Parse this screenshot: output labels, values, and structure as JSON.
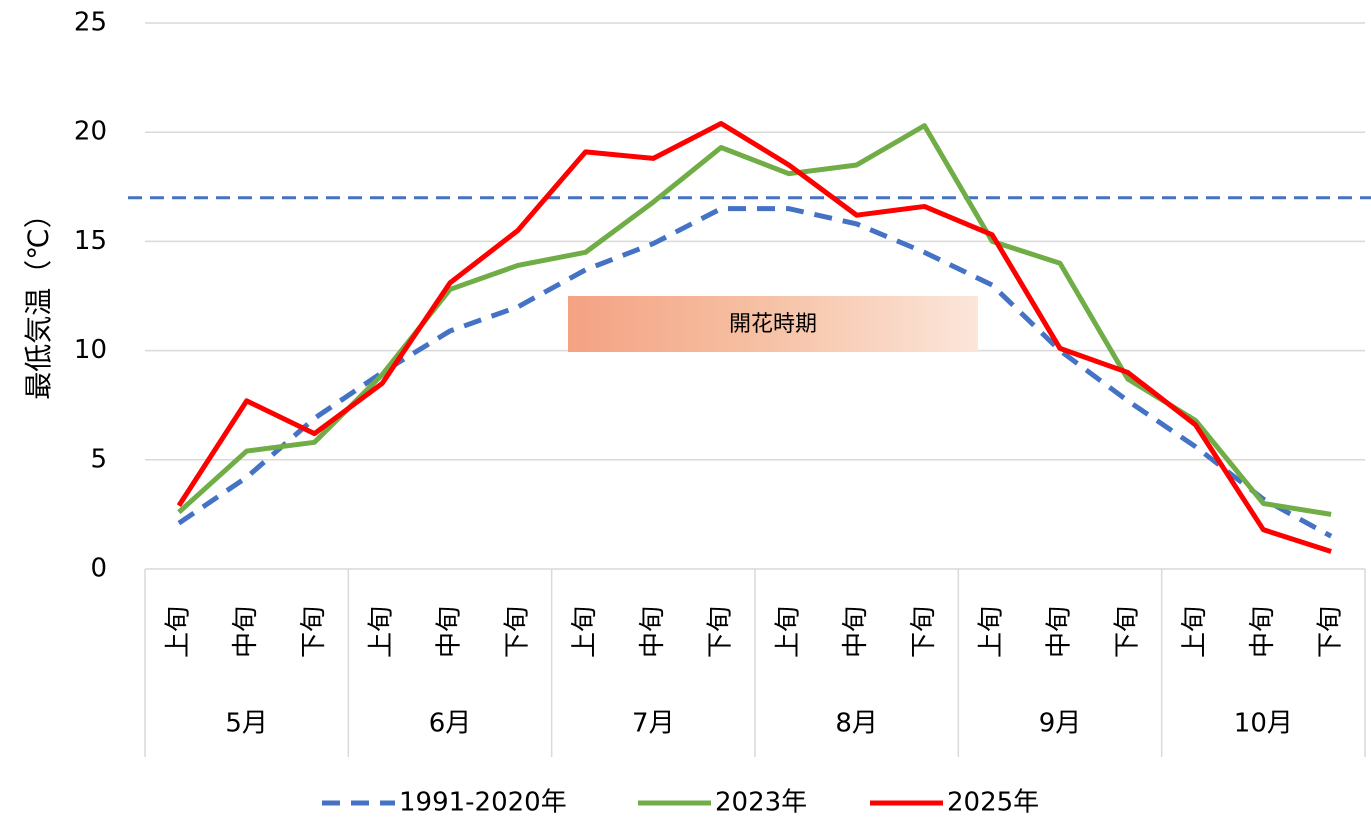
{
  "chart_data": {
    "type": "line",
    "y_label": "最低気温（℃）",
    "annotation": "開花時期",
    "categories": [
      "上旬",
      "中旬",
      "下旬",
      "上旬",
      "中旬",
      "下旬",
      "上旬",
      "中旬",
      "下旬",
      "上旬",
      "中旬",
      "下旬",
      "上旬",
      "中旬",
      "下旬",
      "上旬",
      "中旬",
      "下旬"
    ],
    "groups": [
      "5月",
      "6月",
      "7月",
      "8月",
      "9月",
      "10月"
    ],
    "series": [
      {
        "name": "1991-2020年",
        "color": "#4472c4",
        "dashed": true,
        "values": [
          2.1,
          4.2,
          6.9,
          9.0,
          10.9,
          12.0,
          13.7,
          14.9,
          16.5,
          16.5,
          15.8,
          14.5,
          13.0,
          10.0,
          7.7,
          5.6,
          3.2,
          1.5
        ]
      },
      {
        "name": "2023年",
        "color": "#70ad47",
        "dashed": false,
        "values": [
          2.6,
          5.4,
          5.8,
          8.9,
          12.8,
          13.9,
          14.5,
          16.8,
          19.3,
          18.1,
          18.5,
          20.3,
          15.0,
          14.0,
          8.7,
          6.8,
          3.0,
          2.5
        ]
      },
      {
        "name": "2025年",
        "color": "#ff0000",
        "dashed": false,
        "values": [
          2.9,
          7.7,
          6.2,
          8.5,
          13.1,
          15.5,
          19.1,
          18.8,
          20.4,
          18.5,
          16.2,
          16.6,
          15.3,
          10.1,
          9.0,
          6.6,
          1.8,
          0.8
        ]
      }
    ],
    "reference_line": {
      "value": 17,
      "color": "#4472c4"
    },
    "ylim": [
      0,
      25
    ],
    "yticks": [
      0,
      5,
      10,
      15,
      20,
      25
    ],
    "grid": true
  }
}
